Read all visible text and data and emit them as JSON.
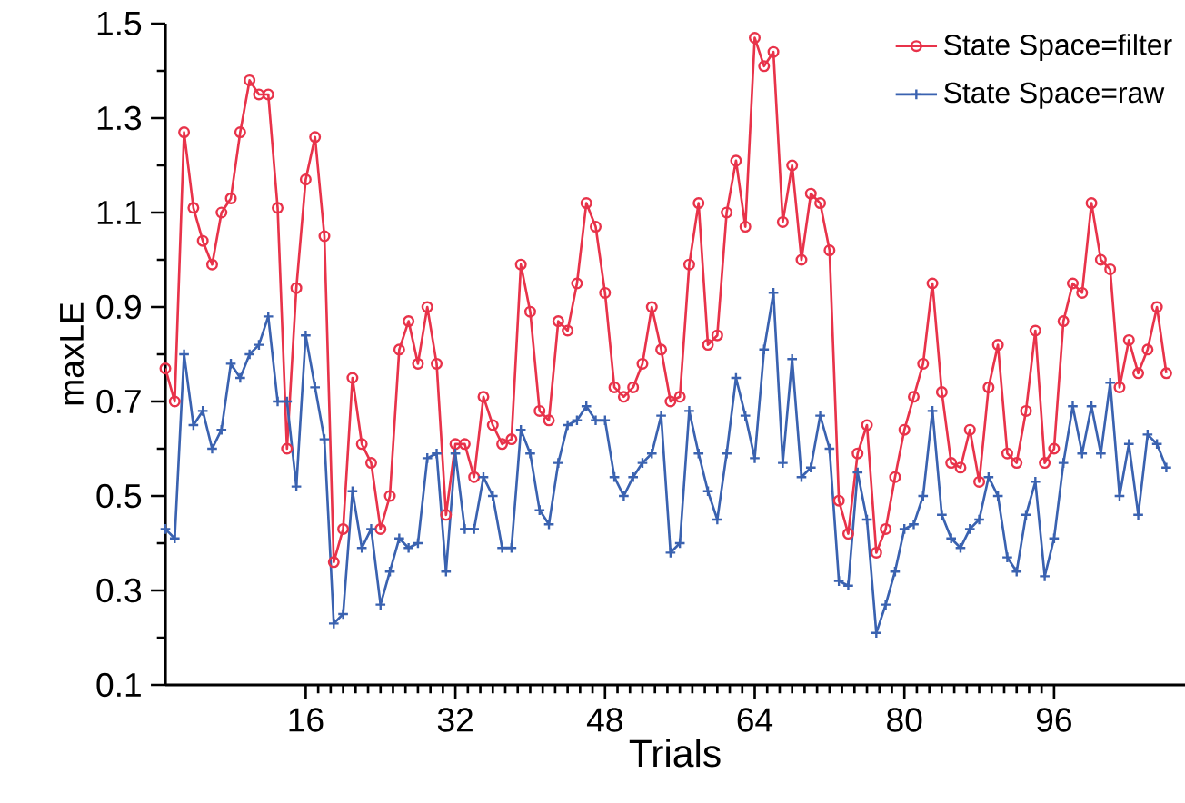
{
  "chart_data": {
    "type": "line",
    "xlabel": "Trials",
    "ylabel": "maxLE",
    "xlim": [
      1,
      110
    ],
    "xticks": [
      16,
      32,
      48,
      64,
      80,
      96
    ],
    "ylim": [
      0.1,
      1.5
    ],
    "yticks": [
      0.1,
      0.3,
      0.5,
      0.7,
      0.9,
      1.1,
      1.3,
      1.5
    ],
    "legend": "top right",
    "grid": false,
    "x": [
      1,
      2,
      3,
      4,
      5,
      6,
      7,
      8,
      9,
      10,
      11,
      12,
      13,
      14,
      15,
      16,
      17,
      18,
      19,
      20,
      21,
      22,
      23,
      24,
      25,
      26,
      27,
      28,
      29,
      30,
      31,
      32,
      33,
      34,
      35,
      36,
      37,
      38,
      39,
      40,
      41,
      42,
      43,
      44,
      45,
      46,
      47,
      48,
      49,
      50,
      51,
      52,
      53,
      54,
      55,
      56,
      57,
      58,
      59,
      60,
      61,
      62,
      63,
      64,
      65,
      66,
      67,
      68,
      69,
      70,
      71,
      72,
      73,
      74,
      75,
      76,
      77,
      78,
      79,
      80,
      81,
      82,
      83,
      84,
      85,
      86,
      87,
      88,
      89,
      90,
      91,
      92,
      93,
      94,
      95,
      96,
      97,
      98,
      99,
      100,
      101,
      102,
      103,
      104,
      105,
      106,
      107,
      108
    ],
    "series": [
      {
        "name": "State Space=filter",
        "color": "#e8334a",
        "marker": "circle",
        "values": [
          0.77,
          0.7,
          1.27,
          1.11,
          1.04,
          0.99,
          1.1,
          1.13,
          1.27,
          1.38,
          1.35,
          1.35,
          1.11,
          0.6,
          0.94,
          1.17,
          1.26,
          1.05,
          0.36,
          0.43,
          0.75,
          0.61,
          0.57,
          0.43,
          0.5,
          0.81,
          0.87,
          0.78,
          0.9,
          0.78,
          0.46,
          0.61,
          0.61,
          0.54,
          0.71,
          0.65,
          0.61,
          0.62,
          0.99,
          0.89,
          0.68,
          0.66,
          0.87,
          0.85,
          0.95,
          1.12,
          1.07,
          0.93,
          0.73,
          0.71,
          0.73,
          0.78,
          0.9,
          0.81,
          0.7,
          0.71,
          0.99,
          1.12,
          0.82,
          0.84,
          1.1,
          1.21,
          1.07,
          1.47,
          1.41,
          1.44,
          1.08,
          1.2,
          1.0,
          1.14,
          1.12,
          1.02,
          0.49,
          0.42,
          0.59,
          0.65,
          0.38,
          0.43,
          0.54,
          0.64,
          0.71,
          0.78,
          0.95,
          0.72,
          0.57,
          0.56,
          0.64,
          0.53,
          0.73,
          0.82,
          0.59,
          0.57,
          0.68,
          0.85,
          0.57,
          0.6,
          0.87,
          0.95,
          0.93,
          1.12,
          1.0,
          0.98,
          0.73,
          0.83,
          0.76,
          0.81,
          0.9,
          0.76
        ]
      },
      {
        "name": "State Space=raw",
        "color": "#3a62b0",
        "marker": "cross",
        "values": [
          0.43,
          0.41,
          0.8,
          0.65,
          0.68,
          0.6,
          0.64,
          0.78,
          0.75,
          0.8,
          0.82,
          0.88,
          0.7,
          0.7,
          0.52,
          0.84,
          0.73,
          0.62,
          0.23,
          0.25,
          0.51,
          0.39,
          0.43,
          0.27,
          0.34,
          0.41,
          0.39,
          0.4,
          0.58,
          0.59,
          0.34,
          0.59,
          0.43,
          0.43,
          0.54,
          0.5,
          0.39,
          0.39,
          0.64,
          0.59,
          0.47,
          0.44,
          0.57,
          0.65,
          0.66,
          0.69,
          0.66,
          0.66,
          0.54,
          0.5,
          0.54,
          0.57,
          0.59,
          0.67,
          0.38,
          0.4,
          0.68,
          0.59,
          0.51,
          0.45,
          0.59,
          0.75,
          0.67,
          0.58,
          0.81,
          0.93,
          0.57,
          0.79,
          0.54,
          0.56,
          0.67,
          0.6,
          0.32,
          0.31,
          0.55,
          0.45,
          0.21,
          0.27,
          0.34,
          0.43,
          0.44,
          0.5,
          0.68,
          0.46,
          0.41,
          0.39,
          0.43,
          0.45,
          0.54,
          0.5,
          0.37,
          0.34,
          0.46,
          0.53,
          0.33,
          0.41,
          0.57,
          0.69,
          0.59,
          0.69,
          0.59,
          0.74,
          0.5,
          0.61,
          0.46,
          0.63,
          0.61,
          0.56
        ]
      }
    ]
  }
}
